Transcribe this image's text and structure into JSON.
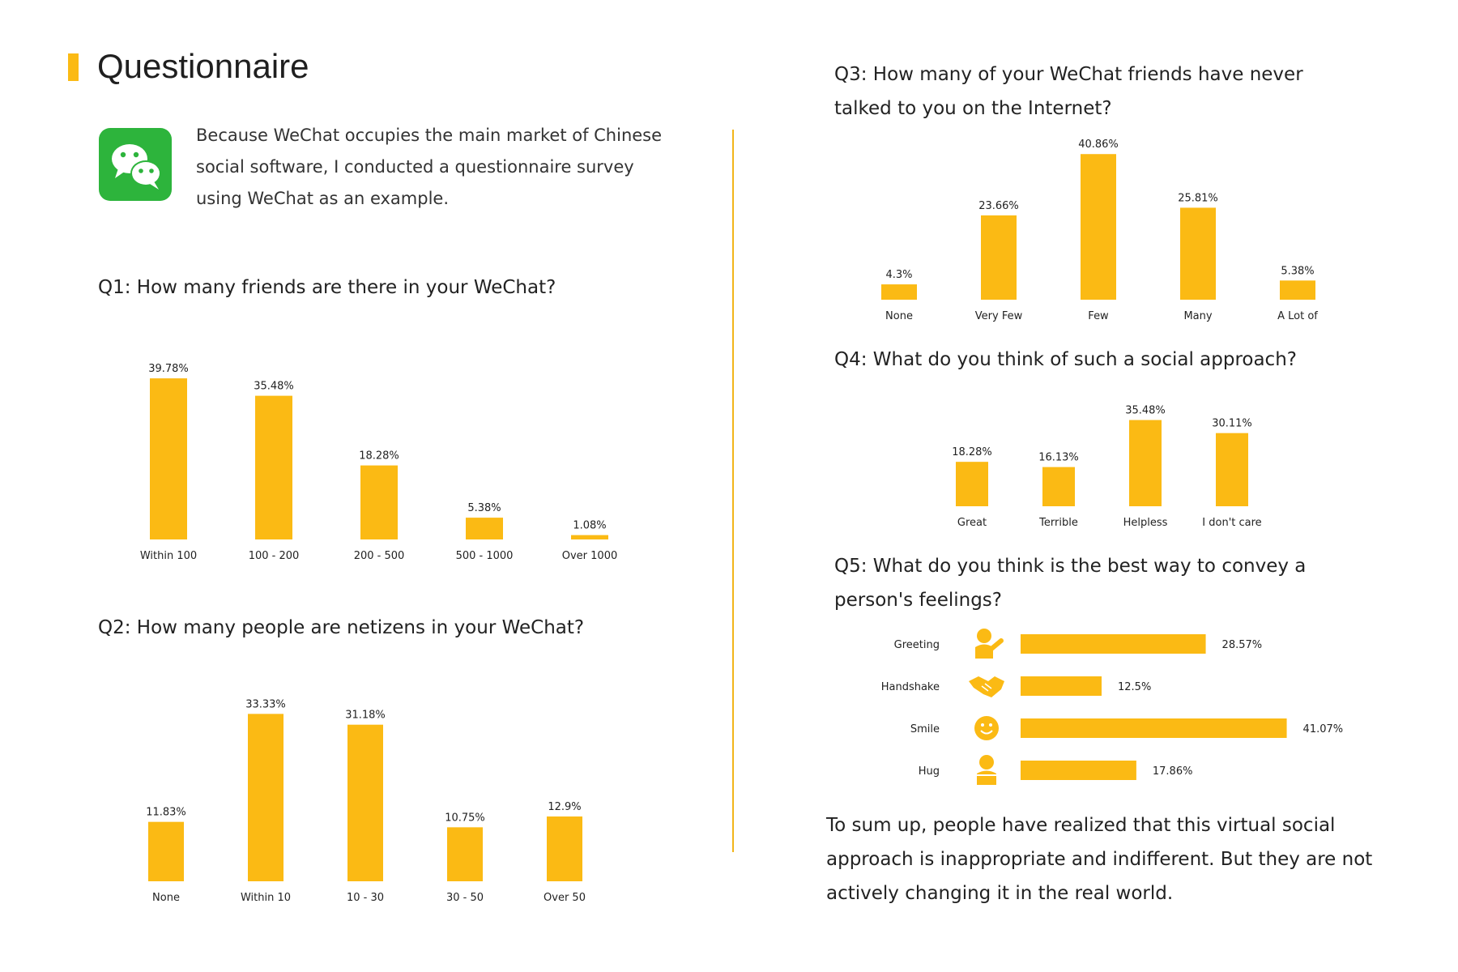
{
  "page": {
    "title": "Questionnaire",
    "intro": "Because WeChat occupies the main market of Chinese social software, I conducted a questionnaire survey using WeChat as an example.",
    "summary": "To sum up, people have realized that this virtual social approach is inappropriate and indifferent. But they are not actively changing it in the real world.",
    "icon": "wechat-logo-icon",
    "colors": {
      "accent": "#FBBA14",
      "wechat_green": "#2DB43C"
    }
  },
  "chart_data": [
    {
      "id": "q1",
      "type": "bar",
      "title": "Q1: How many friends are there in your WeChat?",
      "categories": [
        "Within 100",
        "100 - 200",
        "200 - 500",
        "500 - 1000",
        "Over 1000"
      ],
      "values": [
        39.78,
        35.48,
        18.28,
        5.38,
        1.08
      ],
      "labels": [
        "39.78%",
        "35.48%",
        "18.28%",
        "5.38%",
        "1.08%"
      ],
      "color": "#FBBA14"
    },
    {
      "id": "q2",
      "type": "bar",
      "title": "Q2: How many people are netizens in your WeChat?",
      "categories": [
        "None",
        "Within 10",
        "10 - 30",
        "30 - 50",
        "Over 50"
      ],
      "values": [
        11.83,
        33.33,
        31.18,
        10.75,
        12.9
      ],
      "labels": [
        "11.83%",
        "33.33%",
        "31.18%",
        "10.75%",
        "12.9%"
      ],
      "color": "#FBBA14"
    },
    {
      "id": "q3",
      "type": "bar",
      "title": "Q3: How many of your WeChat friends have never talked to you on the Internet?",
      "categories": [
        "None",
        "Very Few",
        "Few",
        "Many",
        "A Lot of"
      ],
      "values": [
        4.3,
        23.66,
        40.86,
        25.81,
        5.38
      ],
      "labels": [
        "4.3%",
        "23.66%",
        "40.86%",
        "25.81%",
        "5.38%"
      ],
      "color": "#FBBA14"
    },
    {
      "id": "q4",
      "type": "bar",
      "title": "Q4: What do you think of such a social approach?",
      "categories": [
        "Great",
        "Terrible",
        "Helpless",
        "I don't care"
      ],
      "values": [
        18.28,
        16.13,
        35.48,
        30.11
      ],
      "labels": [
        "18.28%",
        "16.13%",
        "35.48%",
        "30.11%"
      ],
      "color": "#FBBA14"
    },
    {
      "id": "q5",
      "type": "bar",
      "orientation": "horizontal",
      "title": "Q5: What do you think is the best way to convey a person's feelings?",
      "categories": [
        "Greeting",
        "Handshake",
        "Smile",
        "Hug"
      ],
      "icons": [
        "waving-person-icon",
        "handshake-icon",
        "smiley-face-icon",
        "hugging-person-icon"
      ],
      "values": [
        28.57,
        12.5,
        41.07,
        17.86
      ],
      "labels": [
        "28.57%",
        "12.5%",
        "41.07%",
        "17.86%"
      ],
      "color": "#FBBA14"
    }
  ]
}
